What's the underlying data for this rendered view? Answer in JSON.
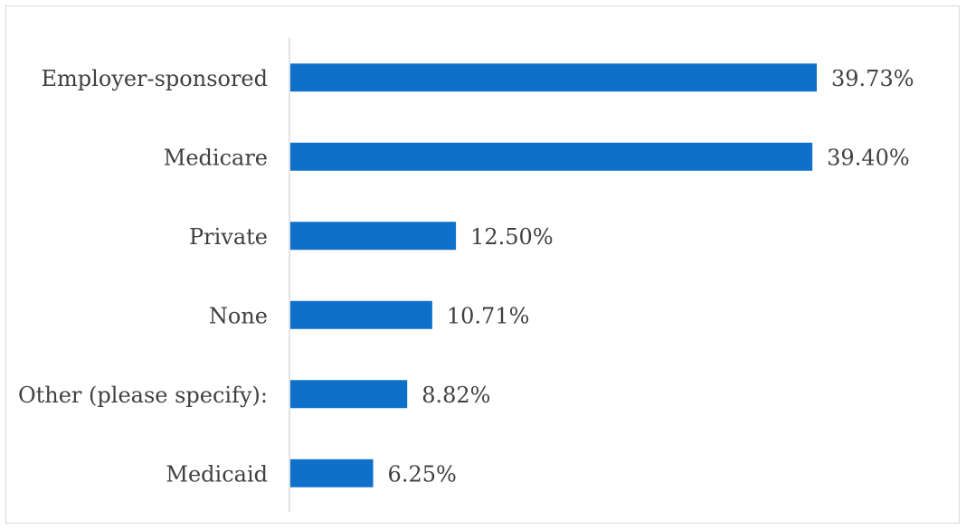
{
  "chart_data": {
    "type": "bar",
    "orientation": "horizontal",
    "categories": [
      "Employer-sponsored",
      "Medicare",
      "Private",
      "None",
      "Other (please specify):",
      "Medicaid"
    ],
    "values": [
      39.73,
      39.4,
      12.5,
      10.71,
      8.82,
      6.25
    ],
    "value_labels": [
      "39.73%",
      "39.40%",
      "12.50%",
      "10.71%",
      "8.82%",
      "6.25%"
    ],
    "title": "",
    "xlabel": "",
    "ylabel": "",
    "xlim": [
      0,
      39.73
    ],
    "grid": false,
    "legend": "none",
    "colors": {
      "bar": "#0f70c9",
      "axis": "#d9d9d9",
      "text": "#404040"
    }
  }
}
